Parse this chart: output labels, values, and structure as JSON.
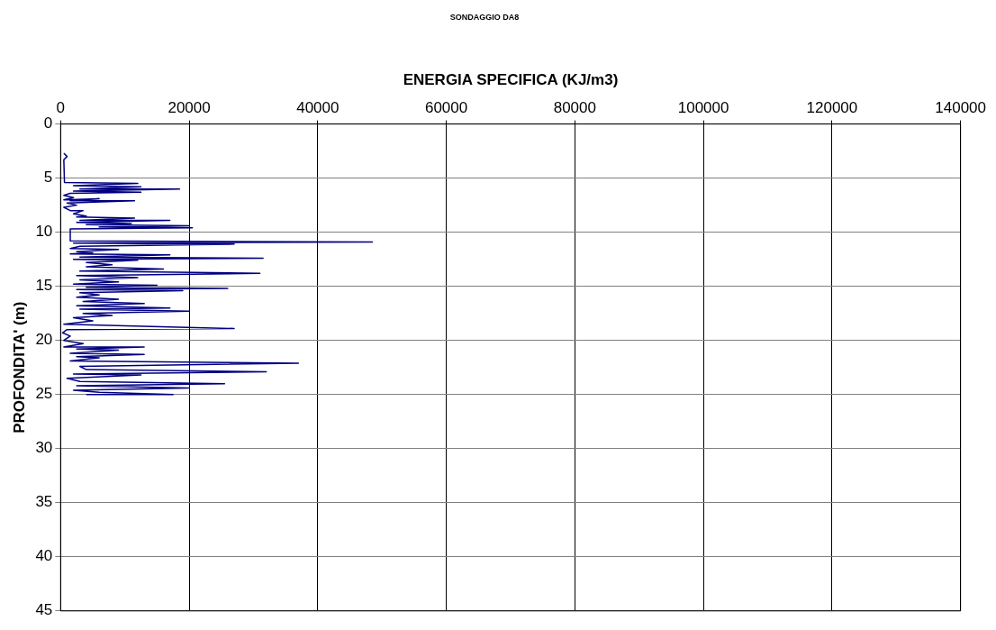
{
  "chart_data": {
    "type": "line",
    "title": "SONDAGGIO DA8",
    "xlabel": "ENERGIA SPECIFICA (KJ/m3)",
    "ylabel": "PROFONDITA' (m)",
    "xlim": [
      0,
      140000
    ],
    "xticks": [
      0,
      20000,
      40000,
      60000,
      80000,
      100000,
      120000,
      140000
    ],
    "ylim": [
      45,
      0
    ],
    "yticks": [
      0,
      5,
      10,
      15,
      20,
      25,
      30,
      35,
      40,
      45
    ],
    "grid": true,
    "marker": "none",
    "legend": false,
    "series": [
      {
        "color": "#000080",
        "x": [
          500,
          1000,
          500,
          600,
          12000,
          2000,
          12500,
          3000,
          18500,
          2000,
          12500,
          1500,
          500,
          2000,
          500,
          6000,
          1500,
          11500,
          1000,
          2500,
          500,
          1500,
          3500,
          2000,
          4000,
          2500,
          11500,
          3000,
          17000,
          2500,
          11000,
          4000,
          20000,
          6000,
          20500,
          1500,
          1500,
          48500,
          2000,
          27000,
          3000,
          1500,
          9000,
          2500,
          5000,
          1500,
          17000,
          3000,
          31500,
          2000,
          12000,
          4000,
          8000,
          4000,
          16000,
          3000,
          31000,
          2500,
          12000,
          3000,
          9000,
          2000,
          15000,
          4000,
          26000,
          2500,
          19000,
          3000,
          6000,
          2500,
          9000,
          3500,
          13000,
          2500,
          17000,
          3000,
          20000,
          3500,
          8000,
          2000,
          5000,
          500,
          27000,
          1000,
          300,
          1500,
          500,
          3500,
          500,
          13000,
          2500,
          9000,
          1500,
          13000,
          2500,
          6000,
          1500,
          37000,
          3000,
          4000,
          32000,
          2000,
          12500,
          1000,
          3000,
          25500,
          2500,
          20000,
          2000,
          6000,
          17500,
          4000
        ],
        "values": [
          2.7,
          3.0,
          3.3,
          5.4,
          5.5,
          5.7,
          5.8,
          6.0,
          6.0,
          6.2,
          6.3,
          6.4,
          6.6,
          6.8,
          7.0,
          6.9,
          7.1,
          7.1,
          7.3,
          7.5,
          7.7,
          8.0,
          8.0,
          8.3,
          8.5,
          8.6,
          8.7,
          8.9,
          8.9,
          9.1,
          9.2,
          9.3,
          9.4,
          9.5,
          9.6,
          9.7,
          10.8,
          10.9,
          11.0,
          11.1,
          11.3,
          11.5,
          11.6,
          11.8,
          11.9,
          12.0,
          12.1,
          12.3,
          12.4,
          12.5,
          12.6,
          12.8,
          13.0,
          13.2,
          13.4,
          13.6,
          13.8,
          14.0,
          14.2,
          14.4,
          14.6,
          14.8,
          14.9,
          15.1,
          15.2,
          15.3,
          15.4,
          15.6,
          15.8,
          16.0,
          16.2,
          16.4,
          16.6,
          16.8,
          17.0,
          17.1,
          17.3,
          17.5,
          17.7,
          17.9,
          18.2,
          18.5,
          18.9,
          19.0,
          19.3,
          19.6,
          20.0,
          20.3,
          20.6,
          20.6,
          20.8,
          20.9,
          21.2,
          21.3,
          21.5,
          21.6,
          21.9,
          22.1,
          22.4,
          22.7,
          22.9,
          23.1,
          23.2,
          23.5,
          23.8,
          24.0,
          24.2,
          24.4,
          24.6,
          24.8,
          25.0,
          25.0
        ]
      }
    ]
  }
}
